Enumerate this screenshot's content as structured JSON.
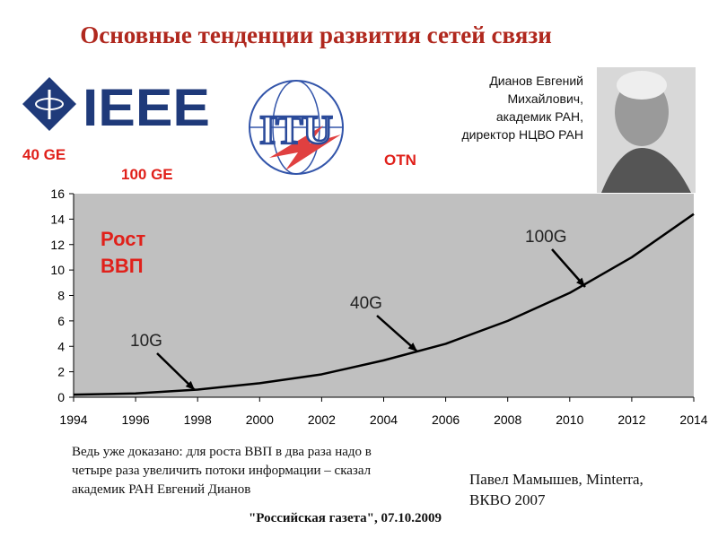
{
  "title": "Основные тенденции развития сетей связи",
  "logos": {
    "ieee": "IEEE",
    "itu": "ITU"
  },
  "author_note": [
    "Дианов Евгений",
    "Михайлович,",
    "академик РАН,",
    "директор НЦВО РАН"
  ],
  "tech_labels": [
    "40 GE",
    "100 GE",
    "OTN"
  ],
  "chart_data": {
    "type": "line",
    "x": [
      1994,
      1996,
      1998,
      2000,
      2002,
      2004,
      2006,
      2008,
      2010,
      2012,
      2014
    ],
    "series": [
      {
        "color": "#000000",
        "values": [
          0.2,
          0.3,
          0.6,
          1.1,
          1.8,
          2.9,
          4.2,
          6.0,
          8.2,
          11.0,
          14.4
        ]
      }
    ],
    "xlim": [
      1994,
      2014
    ],
    "ylim": [
      0,
      16
    ],
    "xticks": [
      1994,
      1996,
      1998,
      2000,
      2002,
      2004,
      2006,
      2008,
      2010,
      2012,
      2014
    ],
    "yticks": [
      0,
      2,
      4,
      6,
      8,
      10,
      12,
      14,
      16
    ],
    "grid": false,
    "background": "#c0c0c0",
    "annotations": [
      "10G",
      "40G",
      "100G"
    ],
    "highlight": [
      "Рост",
      "ВВП"
    ]
  },
  "quote": [
    "Ведь уже доказано: для роста ВВП в два раза надо в",
    "четыре раза увеличить потоки информации – сказал",
    "академик РАН Евгений Дианов"
  ],
  "source": "\"Российская газета\", 07.10.2009",
  "credit": [
    "Павел Мамышев, Minterra,",
    "ВКВО 2007"
  ]
}
